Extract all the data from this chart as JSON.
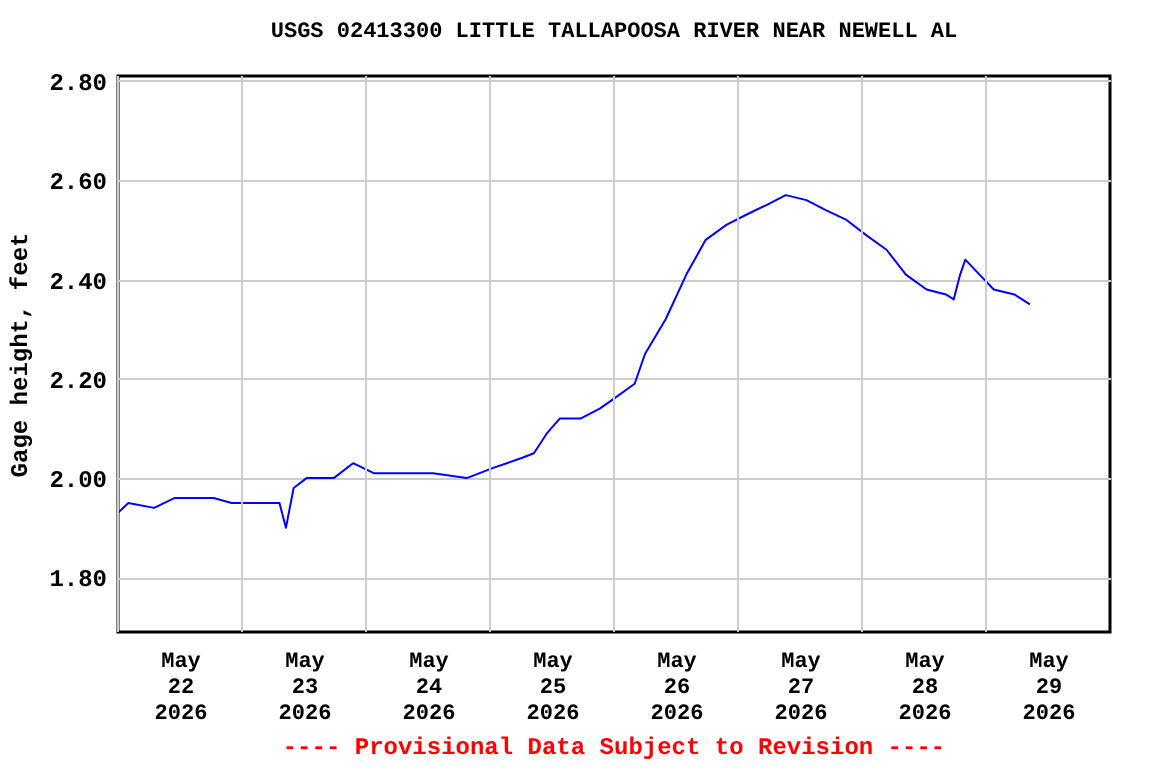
{
  "chart_data": {
    "type": "line",
    "title": "USGS 02413300 LITTLE TALLAPOOSA RIVER NEAR NEWELL AL",
    "ylabel": "Gage height, feet",
    "annotations": [
      "---- Provisional Data Subject to Revision ----"
    ],
    "xlim": [
      "2026-05-22T00:00",
      "2026-05-30T00:00"
    ],
    "xticks": [
      {
        "value": "2026-05-22T00:00",
        "label": null
      },
      {
        "value": "2026-05-22T12:00",
        "label": "May 22 2026"
      },
      {
        "value": "2026-05-23T00:00",
        "label": null
      },
      {
        "value": "2026-05-23T12:00",
        "label": "May 23 2026"
      },
      {
        "value": "2026-05-24T00:00",
        "label": null
      },
      {
        "value": "2026-05-24T12:00",
        "label": "May 24 2026"
      },
      {
        "value": "2026-05-25T00:00",
        "label": null
      },
      {
        "value": "2026-05-25T12:00",
        "label": "May 25 2026"
      },
      {
        "value": "2026-05-26T00:00",
        "label": null
      },
      {
        "value": "2026-05-26T12:00",
        "label": "May 26 2026"
      },
      {
        "value": "2026-05-27T00:00",
        "label": null
      },
      {
        "value": "2026-05-27T12:00",
        "label": "May 27 2026"
      },
      {
        "value": "2026-05-28T00:00",
        "label": null
      },
      {
        "value": "2026-05-28T12:00",
        "label": "May 28 2026"
      },
      {
        "value": "2026-05-29T00:00",
        "label": null
      },
      {
        "value": "2026-05-29T12:00",
        "label": "May 29 2026"
      }
    ],
    "ylim": [
      1.69,
      2.81
    ],
    "yticks": [
      {
        "value": 1.8,
        "label": "1.80"
      },
      {
        "value": 2.0,
        "label": "2.00"
      },
      {
        "value": 2.2,
        "label": "2.20"
      },
      {
        "value": 2.4,
        "label": "2.40"
      },
      {
        "value": 2.6,
        "label": "2.60"
      },
      {
        "value": 2.8,
        "label": "2.80"
      }
    ],
    "grid": true,
    "line_style": "solid",
    "x": [
      "2026-05-22T00:00",
      "2026-05-22T02:00",
      "2026-05-22T07:00",
      "2026-05-22T11:00",
      "2026-05-22T15:00",
      "2026-05-22T18:30",
      "2026-05-22T22:00",
      "2026-05-23T02:00",
      "2026-05-23T07:15",
      "2026-05-23T08:30",
      "2026-05-23T10:00",
      "2026-05-23T12:30",
      "2026-05-23T17:45",
      "2026-05-23T21:30",
      "2026-05-24T01:30",
      "2026-05-24T06:30",
      "2026-05-24T13:00",
      "2026-05-24T19:30",
      "2026-05-25T00:30",
      "2026-05-25T06:00",
      "2026-05-25T08:30",
      "2026-05-25T11:00",
      "2026-05-25T13:30",
      "2026-05-25T17:30",
      "2026-05-25T21:15",
      "2026-05-26T00:00",
      "2026-05-26T04:00",
      "2026-05-26T06:00",
      "2026-05-26T10:00",
      "2026-05-26T14:00",
      "2026-05-26T17:45",
      "2026-05-26T21:45",
      "2026-05-27T01:30",
      "2026-05-27T05:30",
      "2026-05-27T09:15",
      "2026-05-27T13:15",
      "2026-05-27T17:00",
      "2026-05-27T21:00",
      "2026-05-28T00:45",
      "2026-05-28T04:45",
      "2026-05-28T08:30",
      "2026-05-28T12:30",
      "2026-05-28T16:15",
      "2026-05-28T17:45",
      "2026-05-28T19:00",
      "2026-05-28T20:00",
      "2026-05-28T22:45",
      "2026-05-29T01:30",
      "2026-05-29T05:30",
      "2026-05-29T08:30"
    ],
    "series": [
      {
        "color": "#0000ff",
        "values": [
          1.93,
          1.95,
          1.94,
          1.96,
          1.96,
          1.96,
          1.95,
          1.95,
          1.95,
          1.9,
          1.98,
          2.0,
          2.0,
          2.03,
          2.01,
          2.01,
          2.01,
          2.0,
          2.02,
          2.04,
          2.05,
          2.09,
          2.12,
          2.12,
          2.14,
          2.16,
          2.19,
          2.25,
          2.32,
          2.41,
          2.48,
          2.51,
          2.53,
          2.55,
          2.57,
          2.56,
          2.54,
          2.52,
          2.49,
          2.46,
          2.41,
          2.38,
          2.37,
          2.36,
          2.41,
          2.44,
          2.41,
          2.38,
          2.37,
          2.35
        ]
      }
    ]
  }
}
